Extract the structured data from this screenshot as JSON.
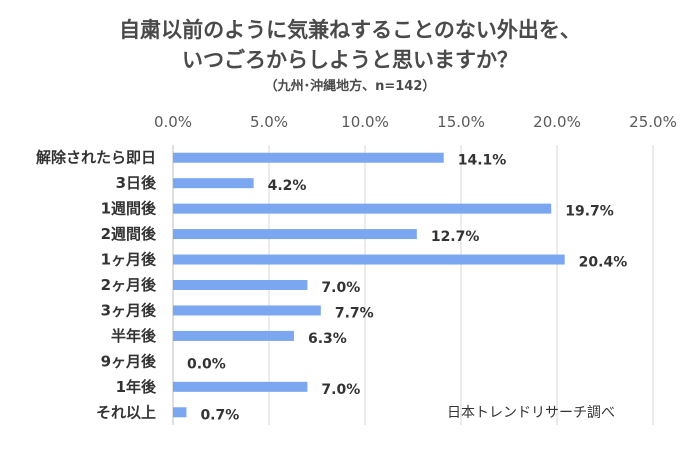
{
  "chart_data": {
    "type": "bar",
    "orientation": "horizontal",
    "title_lines": [
      "自粛以前のように気兼ねすることのない外出を、",
      "いつごろからしようと思いますか？"
    ],
    "subtitle": "（九州･沖縄地方、n=142）",
    "categories": [
      "解除されたら即日",
      "3日後",
      "1週間後",
      "2週間後",
      "1ヶ月後",
      "2ヶ月後",
      "3ヶ月後",
      "半年後",
      "9ヶ月後",
      "1年後",
      "それ以上"
    ],
    "values": [
      14.1,
      4.2,
      19.7,
      12.7,
      20.4,
      7.0,
      7.7,
      6.3,
      0.0,
      7.0,
      0.7
    ],
    "value_labels": [
      "14.1%",
      "4.2%",
      "19.7%",
      "12.7%",
      "20.4%",
      "7.0%",
      "7.7%",
      "6.3%",
      "0.0%",
      "7.0%",
      "0.7%"
    ],
    "xlim": [
      0,
      25
    ],
    "x_ticks": [
      "0.0%",
      "5.0%",
      "10.0%",
      "15.0%",
      "20.0%",
      "25.0%"
    ],
    "grid": true,
    "legend": "none",
    "bar_color": "#7BA7F0",
    "source": "日本トレンドリサーチ調べ"
  }
}
